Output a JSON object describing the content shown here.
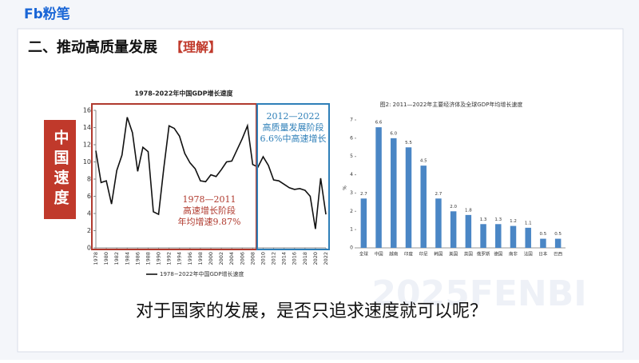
{
  "header": {
    "logo": "Fb粉笔",
    "title": "二、推动高质量发展",
    "tag": "【理解】"
  },
  "side_label": "中国速度",
  "question": "对于国家的发展，是否只追求速度就可以呢？",
  "watermark": "2025FENBI",
  "chart_data": [
    {
      "type": "line",
      "title": "1978-2022年中国GDP增长速度",
      "x": [
        1978,
        1979,
        1980,
        1981,
        1982,
        1983,
        1984,
        1985,
        1986,
        1987,
        1988,
        1989,
        1990,
        1991,
        1992,
        1993,
        1994,
        1995,
        1996,
        1997,
        1998,
        1999,
        2000,
        2001,
        2002,
        2003,
        2004,
        2005,
        2006,
        2007,
        2008,
        2009,
        2010,
        2011,
        2012,
        2013,
        2014,
        2015,
        2016,
        2017,
        2018,
        2019,
        2020,
        2021,
        2022
      ],
      "series": [
        {
          "name": "1978−2022年中国GDP增长速度",
          "color": "#111111",
          "values": [
            11.3,
            7.6,
            7.8,
            5.1,
            9.0,
            10.8,
            15.2,
            13.4,
            8.9,
            11.7,
            11.2,
            4.2,
            3.9,
            9.3,
            14.2,
            13.9,
            13.0,
            11.0,
            9.9,
            9.2,
            7.8,
            7.7,
            8.5,
            8.3,
            9.1,
            10.0,
            10.1,
            11.4,
            12.7,
            14.2,
            9.7,
            9.4,
            10.6,
            9.6,
            7.9,
            7.8,
            7.4,
            7.0,
            6.8,
            6.9,
            6.7,
            6.0,
            2.2,
            8.1,
            3.9
          ]
        }
      ],
      "xlim": [
        1978,
        2022
      ],
      "xticks": [
        1978,
        1980,
        1982,
        1984,
        1986,
        1988,
        1990,
        1992,
        1994,
        1996,
        1998,
        2000,
        2002,
        2004,
        2006,
        2008,
        2010,
        2012,
        2014,
        2016,
        2018,
        2020,
        2022
      ],
      "ylim": [
        0,
        16
      ],
      "yticks": [
        0,
        2,
        4,
        6,
        8,
        10,
        12,
        14,
        16
      ],
      "annotations": [
        [
          "1978—2011",
          "高速增长阶段",
          "年均增速9.87%"
        ],
        [
          "2012—2022",
          "高质量发展阶段",
          "6.6%中高速增长"
        ]
      ],
      "annotation_colors": [
        "#b03a2e",
        "#2e7fb8"
      ]
    },
    {
      "type": "bar",
      "title": "图2: 2011—2022年主要经济体及全球GDP年均增长速度",
      "y_label": "%",
      "categories": [
        "全球",
        "中国",
        "越南",
        "印度",
        "印尼",
        "韩国",
        "美国",
        "英国",
        "俄罗斯",
        "德国",
        "南非",
        "法国",
        "日本",
        "巴西"
      ],
      "values": [
        2.7,
        6.6,
        6.0,
        5.5,
        4.5,
        2.7,
        2.0,
        1.8,
        1.3,
        1.3,
        1.2,
        1.1,
        0.5,
        0.5
      ],
      "value_labels": [
        "2.7",
        "6.6",
        "6.0",
        "5.5",
        "4.5",
        "2.7",
        "2.0",
        "1.8",
        "1.3",
        "1.3",
        "1.2",
        "1.1",
        "0.5",
        "0.5"
      ],
      "color": "#4a86c5",
      "ylim": [
        0,
        7
      ],
      "yticks": [
        0,
        1,
        2,
        3,
        4,
        5,
        6,
        7
      ]
    }
  ]
}
